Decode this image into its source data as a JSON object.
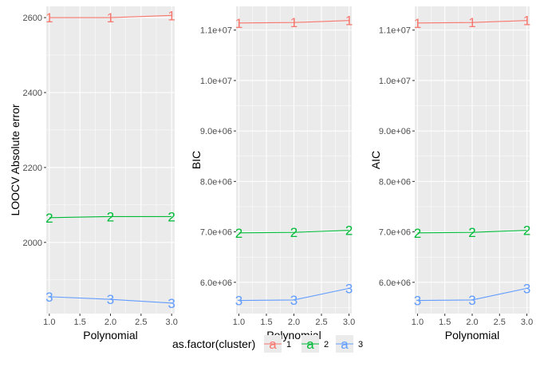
{
  "chart_data": [
    {
      "type": "line",
      "x": [
        1,
        2,
        3
      ],
      "x_ticks": [
        "1.0",
        "1.5",
        "2.0",
        "2.5",
        "3.0"
      ],
      "x_tick_values": [
        1.0,
        1.5,
        2.0,
        2.5,
        3.0
      ],
      "xlim": [
        0.95,
        3.05
      ],
      "xlabel": "Polynomial",
      "ylabel": "LOOCV Absolute error",
      "ylim": [
        1810,
        2630
      ],
      "y_ticks": [
        "2000",
        "2200",
        "2400",
        "2600"
      ],
      "y_tick_values": [
        2000,
        2200,
        2400,
        2600
      ],
      "grid": true,
      "series": [
        {
          "name": "1",
          "values": [
            2600,
            2600,
            2606
          ],
          "labels": [
            "1",
            "1",
            "1"
          ]
        },
        {
          "name": "2",
          "values": [
            2066,
            2069,
            2069
          ],
          "labels": [
            "2",
            "2",
            "2"
          ]
        },
        {
          "name": "3",
          "values": [
            1855,
            1848,
            1838
          ],
          "labels": [
            "3",
            "3",
            "3"
          ]
        }
      ]
    },
    {
      "type": "line",
      "x": [
        1,
        2,
        3
      ],
      "x_ticks": [
        "1.0",
        "1.5",
        "2.0",
        "2.5",
        "3.0"
      ],
      "x_tick_values": [
        1.0,
        1.5,
        2.0,
        2.5,
        3.0
      ],
      "xlim": [
        0.95,
        3.05
      ],
      "xlabel": "Polynomial",
      "ylabel": "BIC",
      "ylim": [
        5380000,
        11470000
      ],
      "y_ticks": [
        "6.0e+06",
        "7.0e+06",
        "8.0e+06",
        "9.0e+06",
        "1.0e+07",
        "1.1e+07"
      ],
      "y_tick_values": [
        6000000,
        7000000,
        8000000,
        9000000,
        10000000,
        11000000
      ],
      "grid": true,
      "series": [
        {
          "name": "1",
          "values": [
            11140000,
            11150000,
            11190000
          ],
          "labels": [
            "1",
            "1",
            "1"
          ]
        },
        {
          "name": "2",
          "values": [
            6980000,
            6990000,
            7030000
          ],
          "labels": [
            "2",
            "2",
            "2"
          ]
        },
        {
          "name": "3",
          "values": [
            5640000,
            5650000,
            5880000
          ],
          "labels": [
            "3",
            "3",
            "3"
          ]
        }
      ]
    },
    {
      "type": "line",
      "x": [
        1,
        2,
        3
      ],
      "x_ticks": [
        "1.0",
        "1.5",
        "2.0",
        "2.5",
        "3.0"
      ],
      "x_tick_values": [
        1.0,
        1.5,
        2.0,
        2.5,
        3.0
      ],
      "xlim": [
        0.95,
        3.05
      ],
      "xlabel": "Polynomial",
      "ylabel": "AIC",
      "ylim": [
        5380000,
        11470000
      ],
      "y_ticks": [
        "6.0e+06",
        "7.0e+06",
        "8.0e+06",
        "9.0e+06",
        "1.0e+07",
        "1.1e+07"
      ],
      "y_tick_values": [
        6000000,
        7000000,
        8000000,
        9000000,
        10000000,
        11000000
      ],
      "grid": true,
      "series": [
        {
          "name": "1",
          "values": [
            11140000,
            11150000,
            11190000
          ],
          "labels": [
            "1",
            "1",
            "1"
          ]
        },
        {
          "name": "2",
          "values": [
            6980000,
            6990000,
            7030000
          ],
          "labels": [
            "2",
            "2",
            "2"
          ]
        },
        {
          "name": "3",
          "values": [
            5640000,
            5650000,
            5880000
          ],
          "labels": [
            "3",
            "3",
            "3"
          ]
        }
      ]
    }
  ],
  "legend": {
    "title": "as.factor(cluster)",
    "position": "bottom",
    "key_glyph": "a",
    "entries": [
      {
        "label": "1",
        "color": "#F8766D"
      },
      {
        "label": "2",
        "color": "#00BA38"
      },
      {
        "label": "3",
        "color": "#619CFF"
      }
    ]
  },
  "style": {
    "panel_background": "#EBEBEB",
    "grid_color": "#FFFFFF",
    "series_colors": [
      "#F8766D",
      "#00BA38",
      "#619CFF"
    ]
  }
}
